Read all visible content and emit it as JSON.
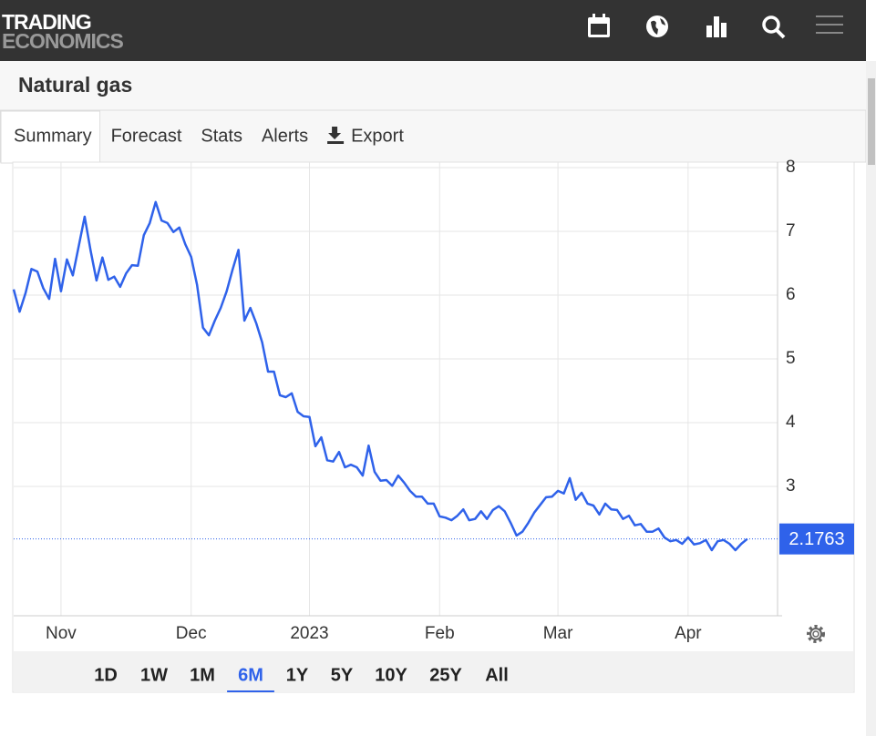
{
  "header": {
    "logo_top": "TRADING",
    "logo_bottom": "ECONOMICS"
  },
  "page_title": "Natural gas",
  "tabs": [
    {
      "label": "Summary",
      "selected": true
    },
    {
      "label": "Forecast",
      "selected": false
    },
    {
      "label": "Stats",
      "selected": false
    },
    {
      "label": "Alerts",
      "selected": false
    },
    {
      "label": "Export",
      "selected": false
    }
  ],
  "chart_data": {
    "type": "line",
    "categories": [
      null,
      null,
      null,
      null,
      null,
      null,
      null,
      null,
      "Nov",
      null,
      null,
      null,
      null,
      null,
      null,
      null,
      null,
      null,
      null,
      null,
      null,
      null,
      null,
      null,
      null,
      null,
      null,
      null,
      null,
      null,
      "Dec",
      null,
      null,
      null,
      null,
      null,
      null,
      null,
      null,
      null,
      null,
      null,
      null,
      null,
      null,
      null,
      null,
      null,
      null,
      null,
      "2023",
      null,
      null,
      null,
      null,
      null,
      null,
      null,
      null,
      null,
      null,
      null,
      null,
      null,
      null,
      null,
      null,
      null,
      null,
      null,
      null,
      null,
      "Feb",
      null,
      null,
      null,
      null,
      null,
      null,
      null,
      null,
      null,
      null,
      null,
      null,
      null,
      null,
      null,
      null,
      null,
      null,
      null,
      "Mar",
      null,
      null,
      null,
      null,
      null,
      null,
      null,
      null,
      null,
      null,
      null,
      null,
      null,
      null,
      null,
      null,
      null,
      null,
      null,
      null,
      null,
      "Apr",
      null,
      null,
      null,
      null,
      null,
      null,
      null,
      null,
      null,
      null
    ],
    "values": [
      6.09,
      5.74,
      6.03,
      6.41,
      6.37,
      6.11,
      5.94,
      6.57,
      6.06,
      6.56,
      6.31,
      6.77,
      7.23,
      6.7,
      6.23,
      6.59,
      6.24,
      6.29,
      6.13,
      6.34,
      6.47,
      6.46,
      6.94,
      7.13,
      7.46,
      7.17,
      7.13,
      6.99,
      7.06,
      6.8,
      6.6,
      6.16,
      5.49,
      5.37,
      5.6,
      5.8,
      6.06,
      6.4,
      6.71,
      5.6,
      5.8,
      5.56,
      5.26,
      4.8,
      4.8,
      4.43,
      4.4,
      4.46,
      4.17,
      4.1,
      4.09,
      3.63,
      3.77,
      3.41,
      3.39,
      3.54,
      3.3,
      3.34,
      3.3,
      3.17,
      3.64,
      3.23,
      3.09,
      3.1,
      3.01,
      3.17,
      3.06,
      2.93,
      2.84,
      2.84,
      2.73,
      2.73,
      2.53,
      2.51,
      2.47,
      2.54,
      2.64,
      2.47,
      2.49,
      2.61,
      2.49,
      2.63,
      2.69,
      2.61,
      2.43,
      2.23,
      2.29,
      2.43,
      2.59,
      2.71,
      2.83,
      2.84,
      2.93,
      2.89,
      3.13,
      2.79,
      2.9,
      2.73,
      2.7,
      2.56,
      2.73,
      2.64,
      2.63,
      2.49,
      2.54,
      2.39,
      2.41,
      2.29,
      2.29,
      2.34,
      2.2,
      2.14,
      2.16,
      2.1,
      2.2,
      2.09,
      2.11,
      2.16,
      2.0,
      2.14,
      2.16,
      2.1,
      2.0,
      2.1,
      2.1763
    ],
    "color": "#2f62ea",
    "ylim": [
      1,
      8.1
    ],
    "yticks": [
      3,
      4,
      5,
      6,
      7,
      8
    ],
    "grid": true,
    "current_value": 2.1763
  },
  "ranges": [
    {
      "label": "1D",
      "selected": false
    },
    {
      "label": "1W",
      "selected": false
    },
    {
      "label": "1M",
      "selected": false
    },
    {
      "label": "6M",
      "selected": true
    },
    {
      "label": "1Y",
      "selected": false
    },
    {
      "label": "5Y",
      "selected": false
    },
    {
      "label": "10Y",
      "selected": false
    },
    {
      "label": "25Y",
      "selected": false
    },
    {
      "label": "All",
      "selected": false
    }
  ]
}
